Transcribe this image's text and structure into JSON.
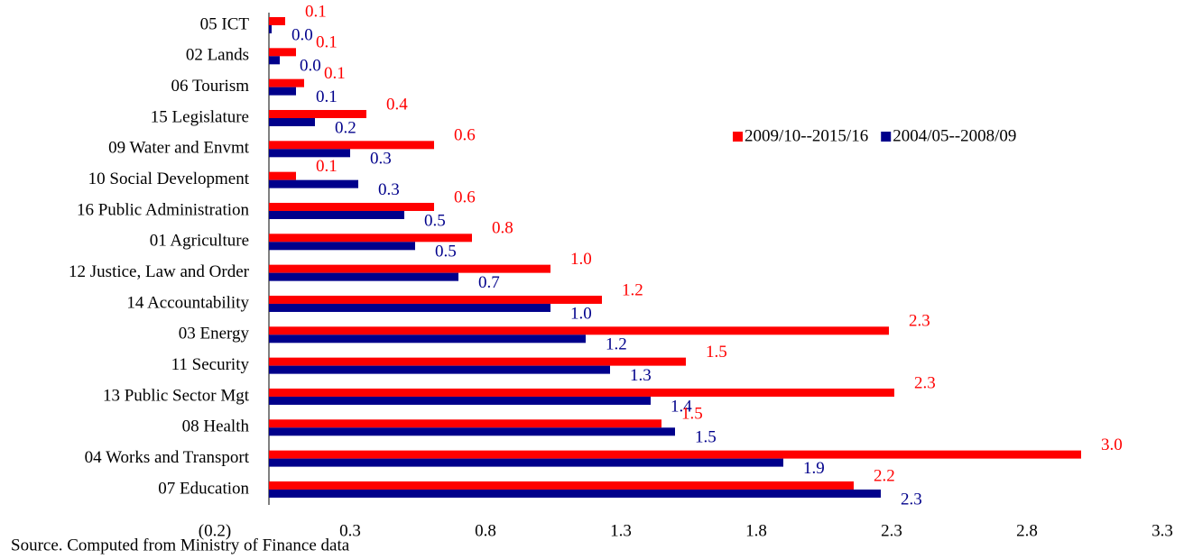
{
  "chart_data": {
    "type": "hbar",
    "categories": [
      "05 ICT",
      "02 Lands",
      "06 Tourism",
      "15 Legislature",
      "09 Water and Envmt",
      "10 Social Development",
      "16 Public Administration",
      "01 Agriculture",
      "12 Justice, Law and Order",
      "14 Accountability",
      "03 Energy",
      "11 Security",
      "13 Public Sector Mgt",
      "08 Health",
      "04 Works and Transport",
      "07 Education"
    ],
    "series": [
      {
        "name": "2009/10--2015/16",
        "color": "#ff0000",
        "values": [
          0.06,
          0.1,
          0.13,
          0.36,
          0.61,
          0.1,
          0.61,
          0.75,
          1.04,
          1.23,
          2.29,
          1.54,
          2.31,
          1.45,
          3.0,
          2.16
        ],
        "value_labels": [
          "0.1",
          "0.1",
          "0.1",
          "0.4",
          "0.6",
          "0.1",
          "0.6",
          "0.8",
          "1.0",
          "1.2",
          "2.3",
          "1.5",
          "2.3",
          "1.5",
          "3.0",
          "2.2"
        ]
      },
      {
        "name": "2004/05--2008/09",
        "color": "#00008b",
        "values": [
          0.01,
          0.04,
          0.1,
          0.17,
          0.3,
          0.33,
          0.5,
          0.54,
          0.7,
          1.04,
          1.17,
          1.26,
          1.41,
          1.5,
          1.9,
          2.26
        ],
        "value_labels": [
          "0.0",
          "0.0",
          "0.1",
          "0.2",
          "0.3",
          "0.3",
          "0.5",
          "0.5",
          "0.7",
          "1.0",
          "1.2",
          "1.3",
          "1.4",
          "1.5",
          "1.9",
          "2.3"
        ]
      }
    ],
    "xlim": [
      -0.2,
      3.3
    ],
    "xticks": [
      {
        "value": -0.2,
        "label": "(0.2)"
      },
      0.3,
      0.8,
      1.3,
      1.8,
      2.3,
      2.8,
      3.3
    ],
    "legend": "right",
    "source": "Source. Computed from Ministry of Finance data"
  }
}
